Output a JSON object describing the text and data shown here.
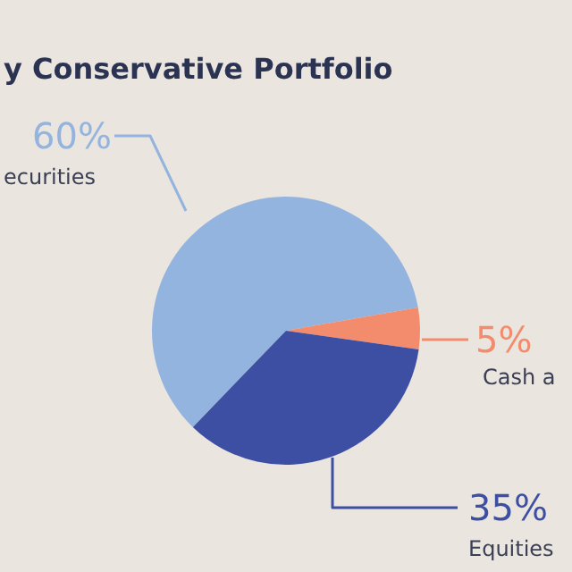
{
  "chart_data": {
    "type": "pie",
    "title": "y Conservative Portfolio",
    "categories": [
      "ecurities",
      "Cash a",
      "Equities"
    ],
    "values": [
      60,
      5,
      35
    ],
    "value_labels": [
      "60%",
      "5%",
      "35%"
    ],
    "colors": [
      "#94b4e0",
      "#f28c6c",
      "#3d4fa3"
    ],
    "legend": false
  }
}
